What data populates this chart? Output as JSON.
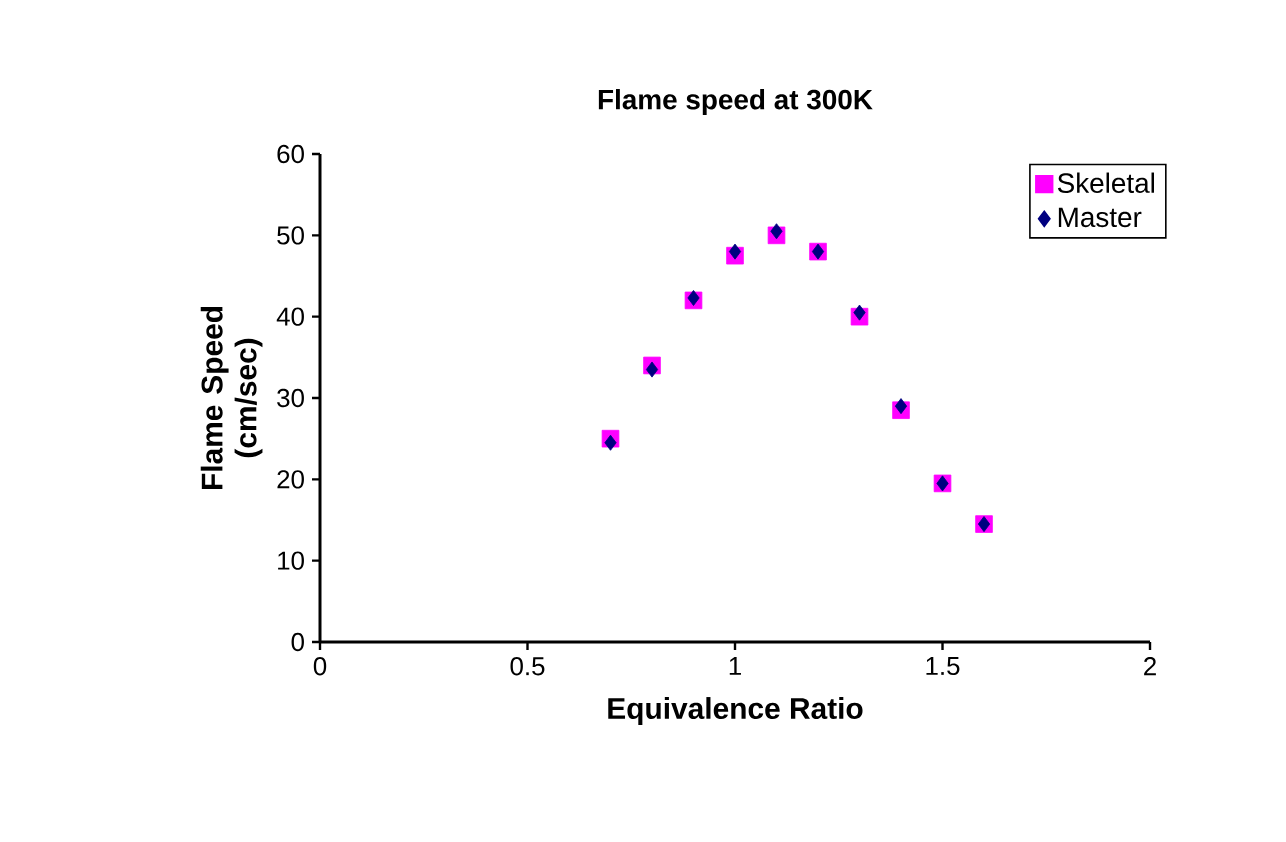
{
  "chart_data": {
    "type": "scatter",
    "title": "Flame speed at 300K",
    "xlabel": "Equivalence Ratio",
    "ylabel": "Flame Speed (cm/sec)",
    "xlim": [
      0,
      2
    ],
    "xticks": [
      0,
      0.5,
      1,
      1.5,
      2
    ],
    "ylim": [
      0,
      60
    ],
    "yticks": [
      0,
      10,
      20,
      30,
      40,
      50,
      60
    ],
    "legend": "top right",
    "grid": false,
    "series": [
      {
        "name": "Skeletal",
        "color": "#ff00ff",
        "marker": "square",
        "x": [
          0.7,
          0.8,
          0.9,
          1.0,
          1.1,
          1.2,
          1.3,
          1.4,
          1.5,
          1.6
        ],
        "values": [
          25,
          34,
          42,
          47.5,
          50,
          48,
          40,
          28.5,
          19.5,
          14.5
        ]
      },
      {
        "name": "Master",
        "color": "#000080",
        "marker": "diamond",
        "x": [
          0.7,
          0.8,
          0.9,
          1.0,
          1.1,
          1.2,
          1.3,
          1.4,
          1.5,
          1.6
        ],
        "values": [
          24.5,
          33.5,
          42.3,
          48,
          50.5,
          48,
          40.5,
          29,
          19.5,
          14.5
        ]
      }
    ]
  }
}
